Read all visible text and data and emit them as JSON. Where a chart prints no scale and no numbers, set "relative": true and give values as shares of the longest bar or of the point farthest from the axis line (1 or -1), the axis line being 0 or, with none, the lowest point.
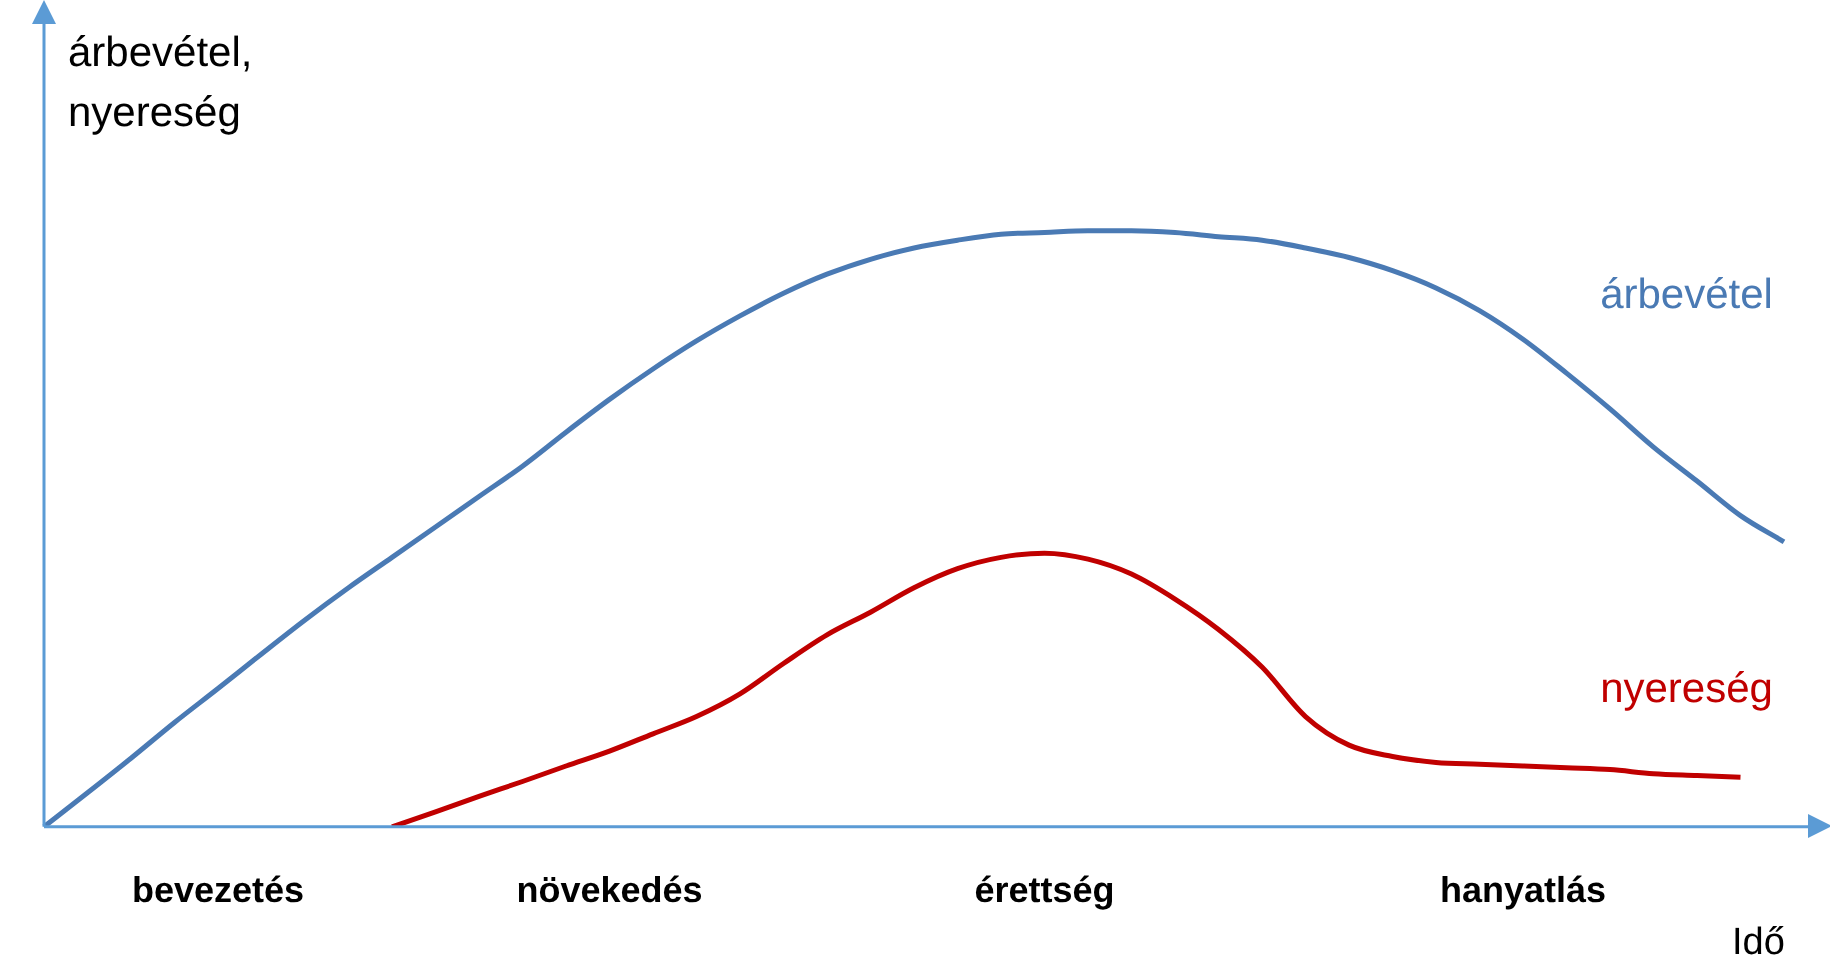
{
  "chart_data": {
    "type": "line",
    "relative": true,
    "xlabel": "Idő",
    "ylabel": "árbevétel, nyereség",
    "categories": [
      null,
      null,
      null,
      null,
      "bevezetés",
      null,
      null,
      null,
      null,
      null,
      null,
      null,
      null,
      "növekedés",
      null,
      null,
      null,
      null,
      null,
      null,
      null,
      null,
      null,
      "érettség",
      null,
      null,
      null,
      null,
      null,
      null,
      null,
      null,
      null,
      null,
      "hanyatlás",
      null,
      null,
      null,
      null,
      null,
      null
    ],
    "series": [
      {
        "name": "árbevétel",
        "color": "#4a7ab4",
        "values": [
          0,
          0.057,
          0.115,
          0.175,
          0.232,
          0.29,
          0.347,
          0.401,
          0.452,
          0.503,
          0.554,
          0.605,
          0.662,
          0.717,
          0.768,
          0.815,
          0.857,
          0.895,
          0.927,
          0.952,
          0.971,
          0.984,
          0.994,
          0.997,
          1,
          1,
          0.997,
          0.99,
          0.984,
          0.971,
          0.955,
          0.933,
          0.904,
          0.866,
          0.818,
          0.761,
          0.701,
          0.637,
          0.58,
          0.522,
          0.478
        ]
      },
      {
        "name": "nyereség",
        "color": "#c00000",
        "values": [
          null,
          null,
          null,
          null,
          null,
          null,
          null,
          null,
          0,
          0.025,
          0.051,
          0.076,
          0.102,
          0.127,
          0.156,
          0.185,
          0.223,
          0.274,
          0.322,
          0.36,
          0.401,
          0.433,
          0.452,
          0.459,
          0.449,
          0.424,
          0.382,
          0.331,
          0.268,
          0.185,
          0.137,
          0.118,
          0.108,
          0.105,
          0.102,
          0.099,
          0.096,
          0.089,
          0.086,
          0.083,
          null
        ]
      }
    ],
    "grid": false,
    "line_style": "solid"
  }
}
